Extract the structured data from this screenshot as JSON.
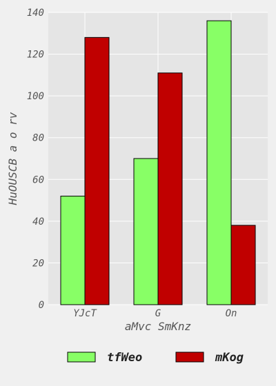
{
  "chart_data": {
    "type": "bar",
    "categories": [
      "YJcT",
      "G",
      "On"
    ],
    "series": [
      {
        "name": "tfWeo",
        "values": [
          52,
          70,
          136
        ],
        "color": "#88ff66"
      },
      {
        "name": "mKog",
        "values": [
          128,
          111,
          38
        ],
        "color": "#c00000"
      }
    ],
    "xlabel": "aMvc SmKnz",
    "ylabel": "HuOUSCB a o rv",
    "ylim": [
      0,
      140
    ],
    "yticks": [
      0,
      20,
      40,
      60,
      80,
      100,
      120,
      140
    ],
    "grid": true,
    "legend_position": "bottom",
    "plot_background": "#e5e5e5",
    "grid_color": "#ffffff"
  }
}
